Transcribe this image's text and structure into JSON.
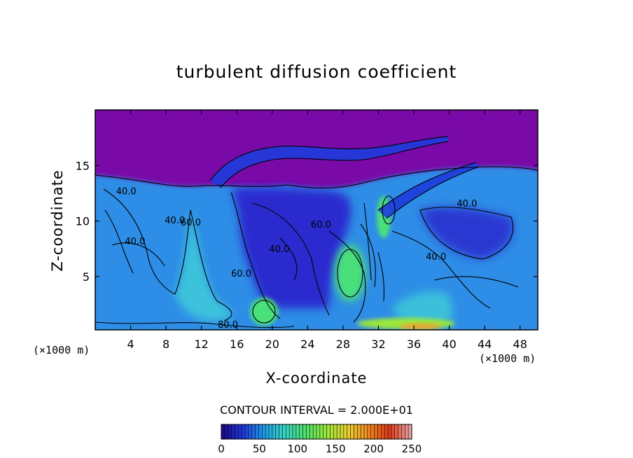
{
  "title": "turbulent diffusion coefficient",
  "chart_data": {
    "type": "heatmap",
    "title": "turbulent diffusion coefficient",
    "xlabel": "X-coordinate",
    "ylabel": "Z-coordinate",
    "x_unit": "(×1000 m)",
    "z_unit": "(×1000 m)",
    "xlim": [
      0,
      50
    ],
    "ylim": [
      0.2,
      20
    ],
    "x_ticks": [
      4,
      8,
      12,
      16,
      20,
      24,
      28,
      32,
      36,
      40,
      44,
      48
    ],
    "y_ticks": [
      5,
      10,
      15
    ],
    "contour_interval_text": "CONTOUR INTERVAL = 2.000E+01",
    "contour_labels": [
      {
        "text": "40.0",
        "x": 3.5,
        "z": 12.4
      },
      {
        "text": "40.0",
        "x": 9.0,
        "z": 9.8
      },
      {
        "text": "40.0",
        "x": 4.5,
        "z": 7.9
      },
      {
        "text": "60.0",
        "x": 10.8,
        "z": 9.6
      },
      {
        "text": "60.0",
        "x": 16.5,
        "z": 5.0
      },
      {
        "text": "40.0",
        "x": 20.8,
        "z": 7.2
      },
      {
        "text": "60.0",
        "x": 25.5,
        "z": 9.4
      },
      {
        "text": "40.0",
        "x": 38.5,
        "z": 6.5
      },
      {
        "text": "40.0",
        "x": 42.0,
        "z": 11.3
      },
      {
        "text": "80.0",
        "x": 15.0,
        "z": 0.4
      }
    ],
    "colorbar": {
      "ticks": [
        0,
        50,
        100,
        150,
        200,
        250
      ],
      "range": [
        0,
        250
      ],
      "colors": [
        "#1a0a8c",
        "#1e3cdc",
        "#1f9fe8",
        "#39d4c4",
        "#4ee06a",
        "#9be83a",
        "#e8d030",
        "#f08a20",
        "#e03818",
        "#e8a0a0"
      ]
    },
    "colors": {
      "background_low": "#7a0aa8",
      "deep_blue": "#2a2acf",
      "mid_blue": "#2f8de6",
      "cyan": "#3fd0d8",
      "green": "#48e07a",
      "orange": "#f0a030"
    }
  }
}
